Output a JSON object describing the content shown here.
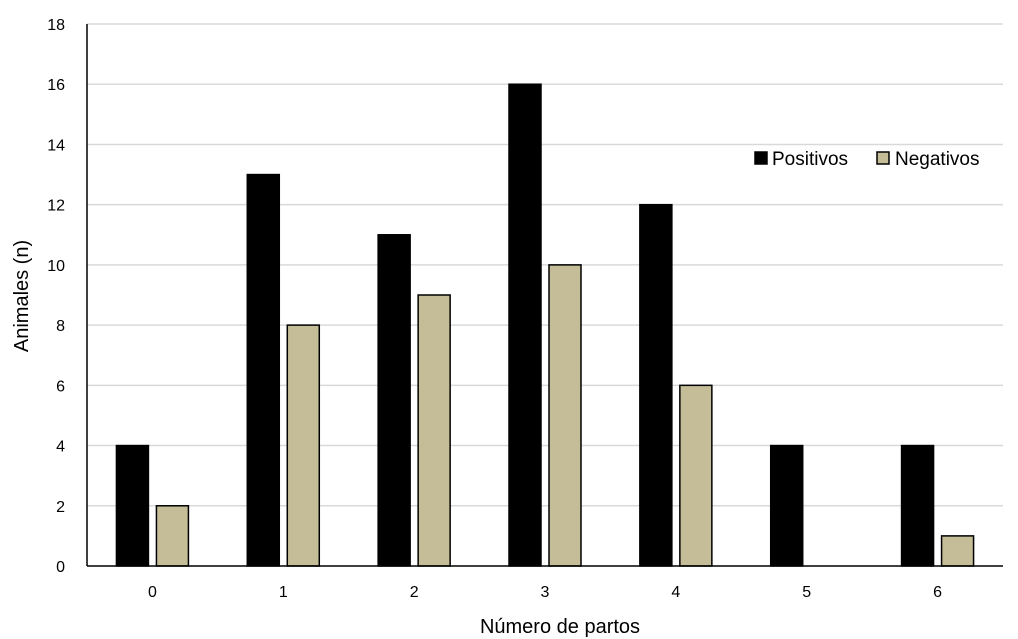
{
  "chart_data": {
    "type": "bar",
    "title": "",
    "xlabel": "Número de partos",
    "ylabel": "Animales (n)",
    "categories": [
      "0",
      "1",
      "2",
      "3",
      "4",
      "5",
      "6"
    ],
    "series": [
      {
        "name": "Positivos",
        "color": "#000000",
        "values": [
          4,
          13,
          11,
          16,
          12,
          4,
          4
        ]
      },
      {
        "name": "Negativos",
        "color": "#c4bd97",
        "values": [
          2,
          8,
          9,
          10,
          6,
          0,
          1
        ]
      }
    ],
    "ylim": [
      0,
      18
    ],
    "yticks": [
      0,
      2,
      4,
      6,
      8,
      10,
      12,
      14,
      16,
      18
    ],
    "grid": "horizontal",
    "legend_position": "top-right"
  }
}
